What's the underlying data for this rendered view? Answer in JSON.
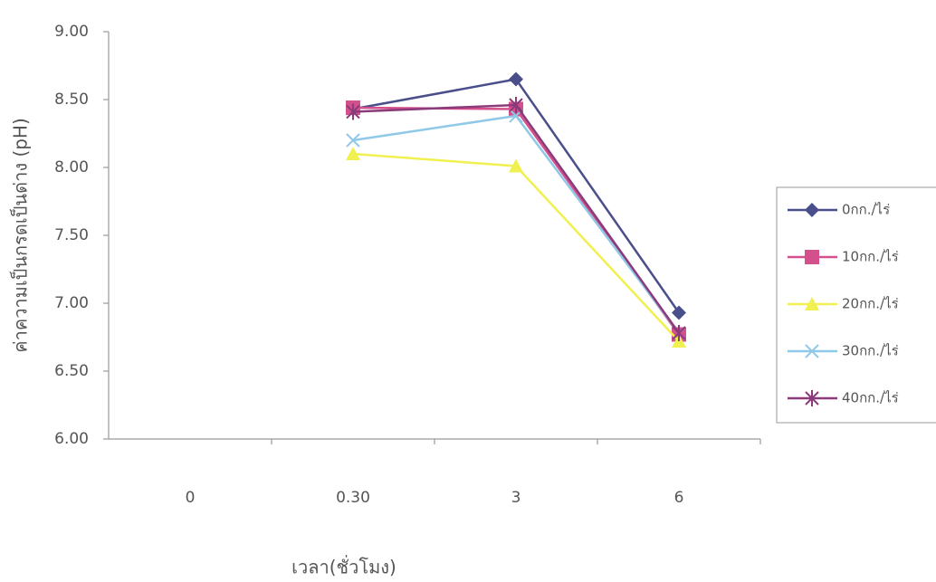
{
  "chart_data": {
    "type": "line",
    "x_label": "เวลา(ชั่วโมง)",
    "y_label": "ค่าความเป็นกรดเป็นด่าง (pH)",
    "categories": [
      "0",
      "0.30",
      "3",
      "6"
    ],
    "ylim": [
      6,
      9
    ],
    "yticks": [
      {
        "value": 6,
        "label": "6.00"
      },
      {
        "value": 6.5,
        "label": "6.50"
      },
      {
        "value": 7,
        "label": "7.00"
      },
      {
        "value": 7.5,
        "label": "7.50"
      },
      {
        "value": 8,
        "label": "8.00"
      },
      {
        "value": 8.5,
        "label": "8.50"
      },
      {
        "value": 9,
        "label": "9.00"
      }
    ],
    "series": [
      {
        "name": "0กก./ไร่",
        "color": "#4a4f8c",
        "marker": "diamond",
        "values": [
          null,
          8.43,
          8.65,
          6.93
        ]
      },
      {
        "name": "10กก./ไร่",
        "color": "#d4508c",
        "marker": "square",
        "values": [
          null,
          8.44,
          8.43,
          6.77
        ]
      },
      {
        "name": "20กก./ไร่",
        "color": "#f0f050",
        "marker": "triangle",
        "values": [
          null,
          8.1,
          8.01,
          6.72
        ]
      },
      {
        "name": "30กก./ไร่",
        "color": "#8fc8e8",
        "marker": "x",
        "values": [
          null,
          8.2,
          8.38,
          6.78
        ]
      },
      {
        "name": "40กก./ไร่",
        "color": "#8b3a7a",
        "marker": "star",
        "values": [
          null,
          8.41,
          8.46,
          6.78
        ]
      }
    ]
  }
}
